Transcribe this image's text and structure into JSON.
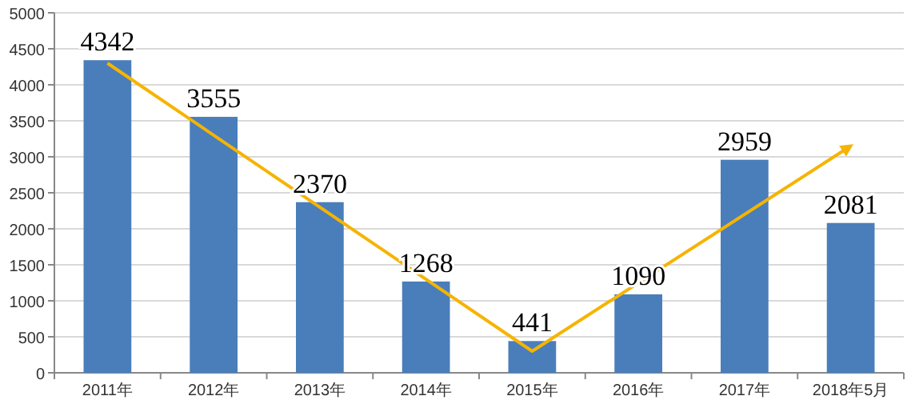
{
  "chart_data": {
    "type": "bar",
    "categories": [
      "2011年",
      "2012年",
      "2013年",
      "2014年",
      "2015年",
      "2016年",
      "2017年",
      "2018年5月"
    ],
    "series": [
      {
        "color": "#4a7ebb",
        "values": [
          4342,
          3555,
          2370,
          1268,
          441,
          1090,
          2959,
          2081
        ],
        "value_labels": [
          "4342",
          "3555",
          "2370",
          "1268",
          "441",
          "1090",
          "2959",
          "2081"
        ]
      },
      {
        "type": "line",
        "color": "#f5b400",
        "values": [
          4300,
          null,
          null,
          null,
          300,
          null,
          null,
          3150
        ],
        "marker": "none"
      }
    ],
    "ylim": [
      0,
      5000
    ],
    "yticks": [
      0,
      500,
      1000,
      1500,
      2000,
      2500,
      3000,
      3500,
      4000,
      4500,
      5000
    ],
    "grid": "y"
  }
}
